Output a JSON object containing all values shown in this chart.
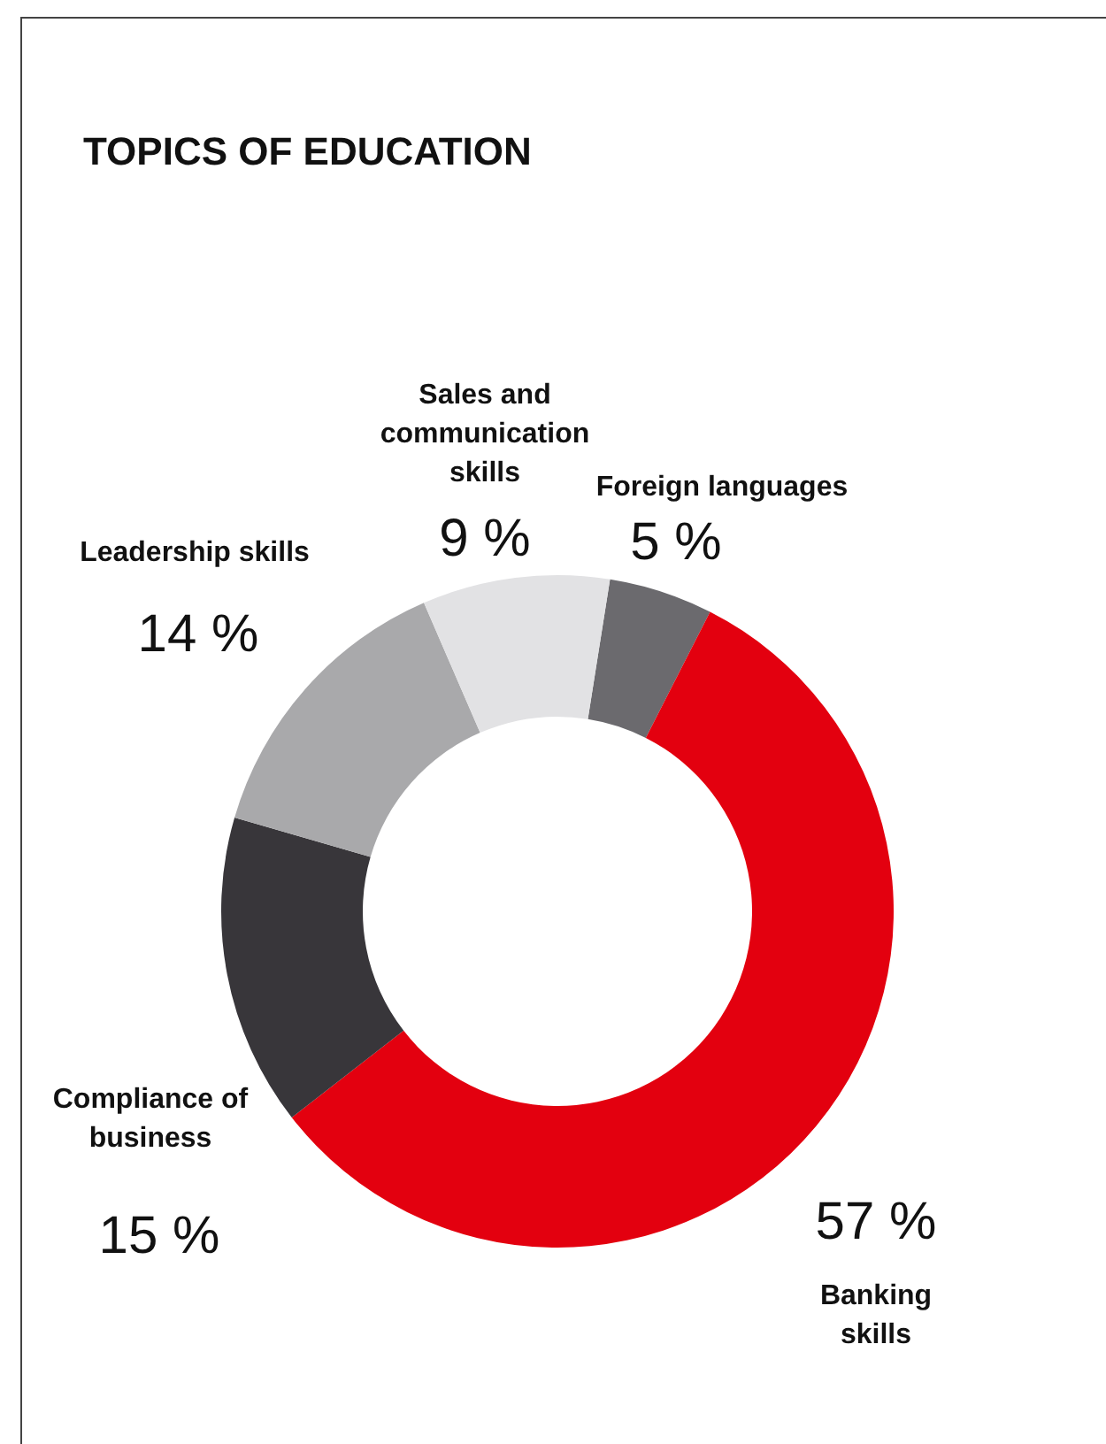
{
  "chart_data": {
    "type": "donut",
    "title": "TOPICS OF EDUCATION",
    "categories": [
      "Foreign languages",
      "Banking skills",
      "Compliance of business",
      "Leadership skills",
      "Sales and communication skills"
    ],
    "values": [
      5,
      57,
      15,
      14,
      9
    ],
    "value_labels": [
      "5 %",
      "57 %",
      "15 %",
      "14 %",
      "9 %"
    ],
    "colors": [
      "#6b6a6e",
      "#e3000f",
      "#38363a",
      "#a9a9ab",
      "#e2e2e4"
    ]
  }
}
